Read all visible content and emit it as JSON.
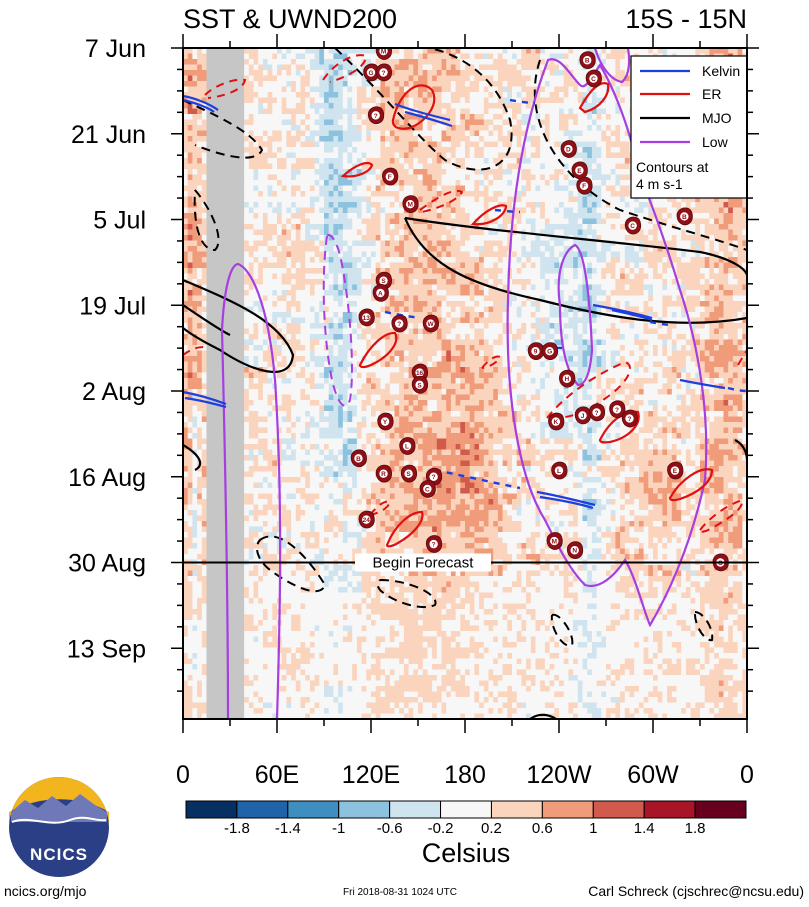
{
  "chart_data": {
    "type": "heatmap",
    "title_left": "SST & UWND200",
    "title_right": "15S - 15N",
    "x_axis": {
      "range_deg_east": [
        0,
        360
      ],
      "ticks": [
        {
          "lon": 0,
          "label": "0"
        },
        {
          "lon": 60,
          "label": "60E"
        },
        {
          "lon": 120,
          "label": "120E"
        },
        {
          "lon": 180,
          "label": "180"
        },
        {
          "lon": 240,
          "label": "120W"
        },
        {
          "lon": 300,
          "label": "60W"
        },
        {
          "lon": 360,
          "label": "0"
        }
      ]
    },
    "y_axis": {
      "range_days_from_jun7": [
        0,
        107
      ],
      "ticks": [
        {
          "day": 0,
          "label": "7 Jun"
        },
        {
          "day": 14,
          "label": "21 Jun"
        },
        {
          "day": 28,
          "label": "5 Jul"
        },
        {
          "day": 42,
          "label": "19 Jul"
        },
        {
          "day": 56,
          "label": "2 Aug"
        },
        {
          "day": 70,
          "label": "16 Aug"
        },
        {
          "day": 84,
          "label": "30 Aug"
        },
        {
          "day": 98,
          "label": "13 Sep"
        }
      ]
    },
    "forecast_day": 84,
    "forecast_label": "Begin Forecast",
    "legend": {
      "position": "top-right",
      "items": [
        {
          "label": "Kelvin",
          "color": "#1e3fe0"
        },
        {
          "label": "ER",
          "color": "#e01010"
        },
        {
          "label": "MJO",
          "color": "#000000"
        },
        {
          "label": "Low",
          "color": "#a63ee0"
        }
      ],
      "note_line1": "Contours at",
      "note_line2": "4 m s-1"
    },
    "colorbar": {
      "label": "Celsius",
      "levels": [
        "-1.8",
        "-1.4",
        "-1",
        "-0.6",
        "-0.2",
        "0.2",
        "0.6",
        "1",
        "1.4",
        "1.8"
      ],
      "colors": [
        "#053061",
        "#1f63a8",
        "#3f8ec0",
        "#8dc2de",
        "#cfe4ef",
        "#f7f7f7",
        "#fbd4be",
        "#f09c7b",
        "#d05b4d",
        "#a81529",
        "#67001f"
      ]
    },
    "land_mask": {
      "lon_start": 15,
      "lon_end": 39,
      "color": "#c6c6c6"
    },
    "storms": [
      {
        "lon": 128,
        "day": 0.5,
        "label": "M"
      },
      {
        "lon": 120,
        "day": 4,
        "label": "G"
      },
      {
        "lon": 128,
        "day": 4,
        "label": "?"
      },
      {
        "lon": 258,
        "day": 2,
        "label": "B"
      },
      {
        "lon": 262,
        "day": 5,
        "label": "C"
      },
      {
        "lon": 123,
        "day": 11,
        "label": "?"
      },
      {
        "lon": 246,
        "day": 16.5,
        "label": "D"
      },
      {
        "lon": 253,
        "day": 20,
        "label": "E"
      },
      {
        "lon": 256,
        "day": 22.5,
        "label": "F"
      },
      {
        "lon": 132,
        "day": 21,
        "label": "F"
      },
      {
        "lon": 145,
        "day": 25.5,
        "label": "M"
      },
      {
        "lon": 287,
        "day": 29,
        "label": "C"
      },
      {
        "lon": 320,
        "day": 27.5,
        "label": "B"
      },
      {
        "lon": 128,
        "day": 38,
        "label": "S"
      },
      {
        "lon": 126,
        "day": 40,
        "label": "A"
      },
      {
        "lon": 117,
        "day": 44,
        "label": "13"
      },
      {
        "lon": 138,
        "day": 45,
        "label": "?"
      },
      {
        "lon": 158,
        "day": 45,
        "label": "W"
      },
      {
        "lon": 225,
        "day": 49.5,
        "label": "9"
      },
      {
        "lon": 234,
        "day": 49.5,
        "label": "G"
      },
      {
        "lon": 151,
        "day": 53,
        "label": "16"
      },
      {
        "lon": 151,
        "day": 55,
        "label": "S"
      },
      {
        "lon": 245,
        "day": 54,
        "label": "H"
      },
      {
        "lon": 129,
        "day": 61,
        "label": "Y"
      },
      {
        "lon": 143,
        "day": 65,
        "label": "L"
      },
      {
        "lon": 112,
        "day": 67,
        "label": "B"
      },
      {
        "lon": 128,
        "day": 69.5,
        "label": "R"
      },
      {
        "lon": 144,
        "day": 69.5,
        "label": "S"
      },
      {
        "lon": 160,
        "day": 70,
        "label": "?"
      },
      {
        "lon": 156,
        "day": 72,
        "label": "C"
      },
      {
        "lon": 238,
        "day": 61,
        "label": "K"
      },
      {
        "lon": 255,
        "day": 60,
        "label": "J"
      },
      {
        "lon": 264,
        "day": 59.5,
        "label": "?"
      },
      {
        "lon": 277,
        "day": 59,
        "label": "?"
      },
      {
        "lon": 285,
        "day": 60.5,
        "label": "?"
      },
      {
        "lon": 240,
        "day": 69,
        "label": "L"
      },
      {
        "lon": 314,
        "day": 69,
        "label": "E"
      },
      {
        "lon": 117,
        "day": 77,
        "label": "24"
      },
      {
        "lon": 160,
        "day": 81,
        "label": "?"
      },
      {
        "lon": 237,
        "day": 80.5,
        "label": "M"
      },
      {
        "lon": 250,
        "day": 82,
        "label": "N"
      },
      {
        "lon": 343,
        "day": 84,
        "label": "O"
      }
    ]
  },
  "logo": {
    "text": "NCICS"
  },
  "footer": {
    "left": "ncics.org/mjo",
    "center": "Fri 2018-08-31 1024 UTC",
    "right": "Carl Schreck (cjschrec@ncsu.edu)"
  }
}
